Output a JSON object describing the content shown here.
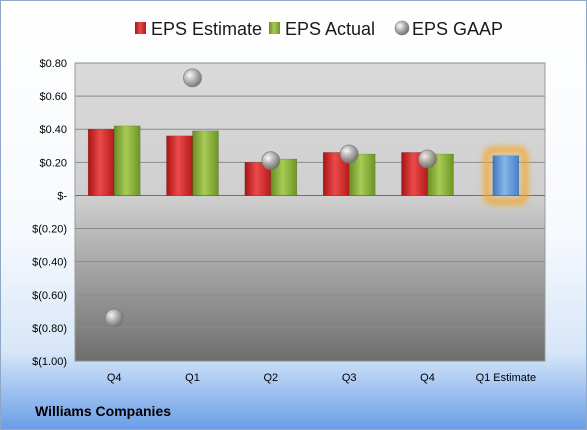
{
  "company": "Williams Companies",
  "chart_data": {
    "type": "bar",
    "title": "",
    "xlabel": "",
    "ylabel": "",
    "categories": [
      "Q4",
      "Q1",
      "Q2",
      "Q3",
      "Q4",
      "Q1 Estimate"
    ],
    "ylim": [
      -1.0,
      0.8
    ],
    "yticks": [
      0.8,
      0.6,
      0.4,
      0.2,
      0.0,
      -0.2,
      -0.4,
      -0.6,
      -0.8,
      -1.0
    ],
    "ytick_labels": [
      "$0.80",
      "$0.60",
      "$0.40",
      "$0.20",
      "$-",
      "$(0.20)",
      "$(0.40)",
      "$(0.60)",
      "$(0.80)",
      "$(1.00)"
    ],
    "grid": true,
    "legend_position": "top",
    "series": [
      {
        "name": "EPS Estimate",
        "type": "bar",
        "color": "#d92b2b",
        "values": [
          0.4,
          0.36,
          0.2,
          0.26,
          0.26,
          null
        ]
      },
      {
        "name": "EPS Actual",
        "type": "bar",
        "color": "#8cb33a",
        "values": [
          0.42,
          0.39,
          0.22,
          0.25,
          0.25,
          null
        ]
      },
      {
        "name": "EPS GAAP",
        "type": "scatter",
        "color": "#a9a9a9",
        "values": [
          -0.74,
          0.71,
          0.21,
          0.25,
          0.22,
          null
        ]
      },
      {
        "name": "Q1 Estimate",
        "type": "bar",
        "color": "#5b9bd5",
        "highlight": "#f5a623",
        "values": [
          null,
          null,
          null,
          null,
          null,
          0.24
        ]
      }
    ]
  }
}
